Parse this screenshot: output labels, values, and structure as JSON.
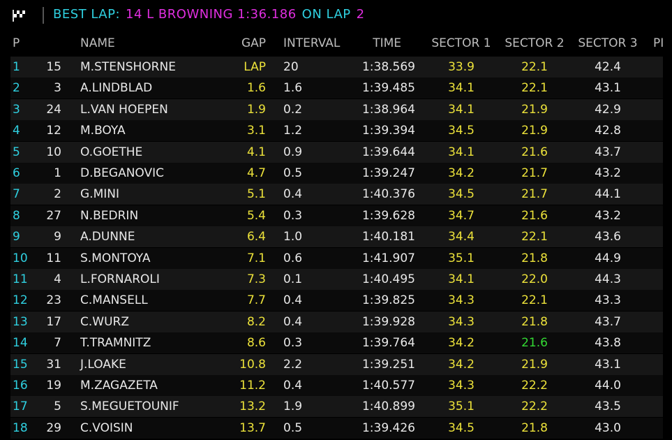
{
  "header": {
    "best_lap": [
      {
        "text": "BEST LAP:",
        "color": "#2fd0e0"
      },
      {
        "text": "14 L BROWNING 1:36.186",
        "color": "#e02ee0"
      },
      {
        "text": "ON LAP",
        "color": "#2fd0e0"
      },
      {
        "text": "2",
        "color": "#e02ee0"
      }
    ]
  },
  "table": {
    "columns": [
      "P",
      "NAME",
      "GAP",
      "INTERVAL",
      "TIME",
      "SECTOR 1",
      "SECTOR 2",
      "SECTOR 3",
      "PI"
    ],
    "colors": {
      "position": "#2fd0e0",
      "gap": "#ece23a",
      "sector": "#ece23a",
      "personal_best": "#33d933",
      "text": "#e8e8e8",
      "header": "#bdbdbd"
    },
    "personal_best_cells": [
      {
        "row": 13,
        "col": 7
      }
    ],
    "rows": [
      [
        "1",
        "15",
        "M.STENSHORNE",
        "LAP",
        "20",
        "1:38.569",
        "33.9",
        "22.1",
        "42.4"
      ],
      [
        "2",
        "3",
        "A.LINDBLAD",
        "1.6",
        "1.6",
        "1:39.485",
        "34.1",
        "22.1",
        "43.1"
      ],
      [
        "3",
        "24",
        "L.VAN HOEPEN",
        "1.9",
        "0.2",
        "1:38.964",
        "34.1",
        "21.9",
        "42.9"
      ],
      [
        "4",
        "12",
        "M.BOYA",
        "3.1",
        "1.2",
        "1:39.394",
        "34.5",
        "21.9",
        "42.8"
      ],
      [
        "5",
        "10",
        "O.GOETHE",
        "4.1",
        "0.9",
        "1:39.644",
        "34.1",
        "21.6",
        "43.7"
      ],
      [
        "6",
        "1",
        "D.BEGANOVIC",
        "4.7",
        "0.5",
        "1:39.247",
        "34.2",
        "21.7",
        "43.2"
      ],
      [
        "7",
        "2",
        "G.MINI",
        "5.1",
        "0.4",
        "1:40.376",
        "34.5",
        "21.7",
        "44.1"
      ],
      [
        "8",
        "27",
        "N.BEDRIN",
        "5.4",
        "0.3",
        "1:39.628",
        "34.7",
        "21.6",
        "43.2"
      ],
      [
        "9",
        "9",
        "A.DUNNE",
        "6.4",
        "1.0",
        "1:40.181",
        "34.4",
        "22.1",
        "43.6"
      ],
      [
        "10",
        "11",
        "S.MONTOYA",
        "7.1",
        "0.6",
        "1:41.907",
        "35.1",
        "21.8",
        "44.9"
      ],
      [
        "11",
        "4",
        "L.FORNAROLI",
        "7.3",
        "0.1",
        "1:40.495",
        "34.1",
        "22.0",
        "44.3"
      ],
      [
        "12",
        "23",
        "C.MANSELL",
        "7.7",
        "0.4",
        "1:39.825",
        "34.3",
        "22.1",
        "43.3"
      ],
      [
        "13",
        "17",
        "C.WURZ",
        "8.2",
        "0.4",
        "1:39.928",
        "34.3",
        "21.8",
        "43.7"
      ],
      [
        "14",
        "7",
        "T.TRAMNITZ",
        "8.6",
        "0.3",
        "1:39.764",
        "34.2",
        "21.6",
        "43.8"
      ],
      [
        "15",
        "31",
        "J.LOAKE",
        "10.8",
        "2.2",
        "1:39.251",
        "34.2",
        "21.9",
        "43.1"
      ],
      [
        "16",
        "19",
        "M.ZAGAZETA",
        "11.2",
        "0.4",
        "1:40.577",
        "34.3",
        "22.2",
        "44.0"
      ],
      [
        "17",
        "5",
        "S.MEGUETOUNIF",
        "13.2",
        "1.9",
        "1:40.899",
        "35.1",
        "22.2",
        "43.5"
      ],
      [
        "18",
        "29",
        "C.VOISIN",
        "13.7",
        "0.5",
        "1:39.426",
        "34.5",
        "21.8",
        "43.0"
      ]
    ]
  }
}
